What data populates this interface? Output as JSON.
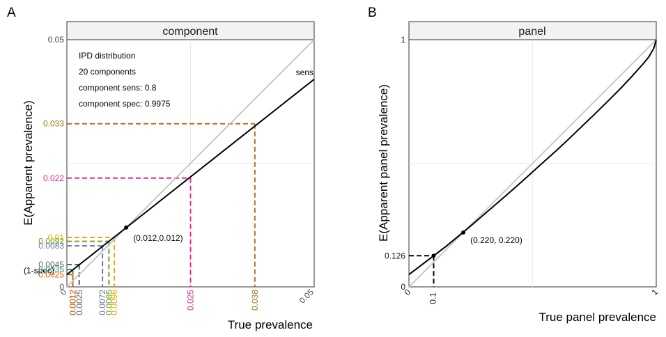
{
  "chart_data": [
    {
      "panel_letter": "A",
      "type": "line",
      "strip_title": "component",
      "xlabel": "True prevalence",
      "ylabel": "E(Apparent prevalence)",
      "xlim": [
        0,
        0.05
      ],
      "ylim": [
        0,
        0.05
      ],
      "grid": true,
      "annotation_lines": [
        "IPD distribution",
        "20 components",
        "component sens: 0.8",
        "component spec: 0.9975"
      ],
      "line_label": "sens",
      "reference_line": {
        "x": [
          0,
          0.05
        ],
        "y": [
          0,
          0.05
        ]
      },
      "series": [
        {
          "x": [
            0,
            0.05
          ],
          "y": [
            0.0025,
            0.042
          ]
        }
      ],
      "point": {
        "x": 0.012,
        "y": 0.012,
        "label": "(0.012,0.012)"
      },
      "intercept_label": "(1-spec)",
      "x_tick_labels": [
        {
          "value": 0,
          "label": "0"
        },
        {
          "value": 0.05,
          "label": "0.05"
        }
      ],
      "y_tick_labels": [
        {
          "value": 0,
          "label": "0"
        },
        {
          "value": 0.05,
          "label": "0.05"
        }
      ],
      "guides": [
        {
          "x": 0.0012,
          "y": 0.0035,
          "x_label": "0.0012",
          "y_label": "0.0035",
          "color": "#1a9e77"
        },
        {
          "x": 0.0025,
          "y": 0.0045,
          "x_label": "0.0025",
          "y_label": "0.0045",
          "color": "#666666"
        },
        {
          "x": 0.0012,
          "y": 0.0025,
          "x_label": "0.0012",
          "y_label": "0.0025",
          "color": "#d95f02"
        },
        {
          "x": 0.0072,
          "y": 0.0083,
          "x_label": "0.0072",
          "y_label": "0.0083",
          "color": "#7570b3"
        },
        {
          "x": 0.0085,
          "y": 0.0092,
          "x_label": "0.0085",
          "y_label": "0.0092",
          "color": "#66a61e"
        },
        {
          "x": 0.0096,
          "y": 0.01,
          "x_label": "0.0096",
          "y_label": "0.01",
          "color": "#e6ab02"
        },
        {
          "x": 0.025,
          "y": 0.022,
          "x_label": "0.025",
          "y_label": "0.022",
          "color": "#e7298a"
        },
        {
          "x": 0.038,
          "y": 0.033,
          "x_label": "0.038",
          "y_label": "0.033",
          "color": "#a6761d"
        }
      ]
    },
    {
      "panel_letter": "B",
      "type": "line",
      "strip_title": "panel",
      "xlabel": "True panel prevalence",
      "ylabel": "E(Apparent panel prevalence)",
      "xlim": [
        0,
        1
      ],
      "ylim": [
        0,
        1
      ],
      "grid": true,
      "reference_line": {
        "x": [
          0,
          1
        ],
        "y": [
          0,
          1
        ]
      },
      "series": [
        {
          "x": [
            0,
            0.05,
            0.1,
            0.15,
            0.2,
            0.25,
            0.3,
            0.35,
            0.4,
            0.45,
            0.5,
            0.55,
            0.6,
            0.65,
            0.7,
            0.75,
            0.8,
            0.85,
            0.9,
            0.95,
            0.97,
            0.99,
            1.0
          ],
          "y": [
            0.05,
            0.088,
            0.126,
            0.164,
            0.205,
            0.247,
            0.29,
            0.333,
            0.376,
            0.42,
            0.465,
            0.51,
            0.555,
            0.602,
            0.65,
            0.698,
            0.747,
            0.797,
            0.85,
            0.906,
            0.93,
            0.965,
            1.0
          ]
        }
      ],
      "point": {
        "x": 0.22,
        "y": 0.22,
        "label": "(0.220, 0.220)"
      },
      "x_tick_labels": [
        {
          "value": 0,
          "label": "0"
        },
        {
          "value": 0.1,
          "label": "0.1"
        },
        {
          "value": 1,
          "label": "1"
        }
      ],
      "y_tick_labels": [
        {
          "value": 0,
          "label": "0"
        },
        {
          "value": 0.126,
          "label": "0.126"
        },
        {
          "value": 1,
          "label": "1"
        }
      ],
      "guides": [
        {
          "x": 0.1,
          "y": 0.126,
          "x_label": "0.1",
          "y_label": "0.126",
          "color": "#000000"
        }
      ]
    }
  ]
}
